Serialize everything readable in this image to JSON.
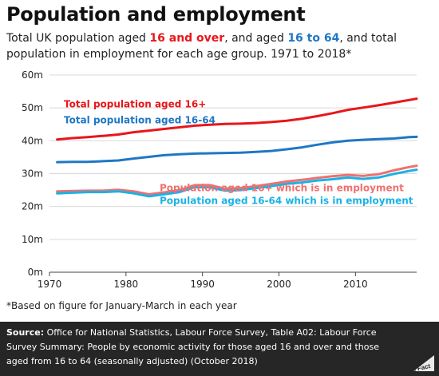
{
  "header": {
    "title": "Population and employment",
    "subtitle_parts": {
      "p1": "Total UK population aged ",
      "h1": "16 and over",
      "p2": ", and aged ",
      "h2": "16 to 64",
      "p3": ", and total population in employment for each age group. 1971 to 2018*"
    }
  },
  "footnote": "*Based on figure for January-March in each year",
  "source": {
    "label": "Source:",
    "text": " Office for National Statistics, Labour Force Survey, Table A02: Labour Force Survey Summary: People by economic activity for those aged 16 and over and those aged from 16 to 64 (seasonally adjusted) (October 2018)"
  },
  "logo_text": "Full Fact",
  "chart_data": {
    "type": "line",
    "xlim": [
      1970,
      2018
    ],
    "ylim": [
      0,
      60
    ],
    "x_ticks": [
      1970,
      1980,
      1990,
      2000,
      2010
    ],
    "x_tick_labels": [
      "1970",
      "1980",
      "1990",
      "2000",
      "2010"
    ],
    "y_ticks": [
      0,
      10,
      20,
      30,
      40,
      50,
      60
    ],
    "y_tick_labels": [
      "0m",
      "10m",
      "20m",
      "30m",
      "40m",
      "50m",
      "60m"
    ],
    "grid": "horizontal",
    "x": [
      1971,
      1973,
      1975,
      1977,
      1979,
      1981,
      1983,
      1985,
      1987,
      1989,
      1991,
      1993,
      1995,
      1997,
      1999,
      2001,
      2003,
      2005,
      2007,
      2009,
      2011,
      2013,
      2015,
      2017,
      2018
    ],
    "series": [
      {
        "name": "Total population aged 16+",
        "color": "#e8161b",
        "values": [
          40.4,
          40.8,
          41.1,
          41.5,
          41.9,
          42.6,
          43.1,
          43.6,
          44.1,
          44.6,
          44.9,
          45.1,
          45.2,
          45.4,
          45.7,
          46.1,
          46.7,
          47.5,
          48.4,
          49.4,
          50.1,
          50.8,
          51.6,
          52.4,
          52.8
        ]
      },
      {
        "name": "Total population aged 16-64",
        "color": "#1f77c4",
        "values": [
          33.5,
          33.6,
          33.6,
          33.8,
          34.0,
          34.6,
          35.1,
          35.6,
          35.9,
          36.1,
          36.2,
          36.3,
          36.4,
          36.6,
          36.9,
          37.4,
          38.0,
          38.8,
          39.5,
          40.0,
          40.3,
          40.5,
          40.7,
          41.1,
          41.2
        ]
      },
      {
        "name": "Population aged 16+ which is in employment",
        "color": "#f07070",
        "values": [
          24.6,
          24.7,
          24.8,
          24.8,
          25.1,
          24.6,
          23.7,
          24.3,
          25.0,
          26.5,
          26.5,
          25.4,
          25.6,
          26.2,
          26.9,
          27.6,
          28.1,
          28.7,
          29.2,
          29.6,
          29.3,
          29.8,
          31.0,
          32.0,
          32.4
        ]
      },
      {
        "name": "Population aged 16-64 which is in employment",
        "color": "#1ab2e5",
        "values": [
          24.0,
          24.2,
          24.4,
          24.4,
          24.6,
          24.0,
          23.1,
          23.7,
          24.4,
          25.9,
          25.8,
          24.8,
          25.0,
          25.6,
          26.2,
          26.9,
          27.3,
          27.9,
          28.3,
          28.8,
          28.4,
          28.8,
          29.9,
          30.8,
          31.2
        ]
      }
    ]
  }
}
